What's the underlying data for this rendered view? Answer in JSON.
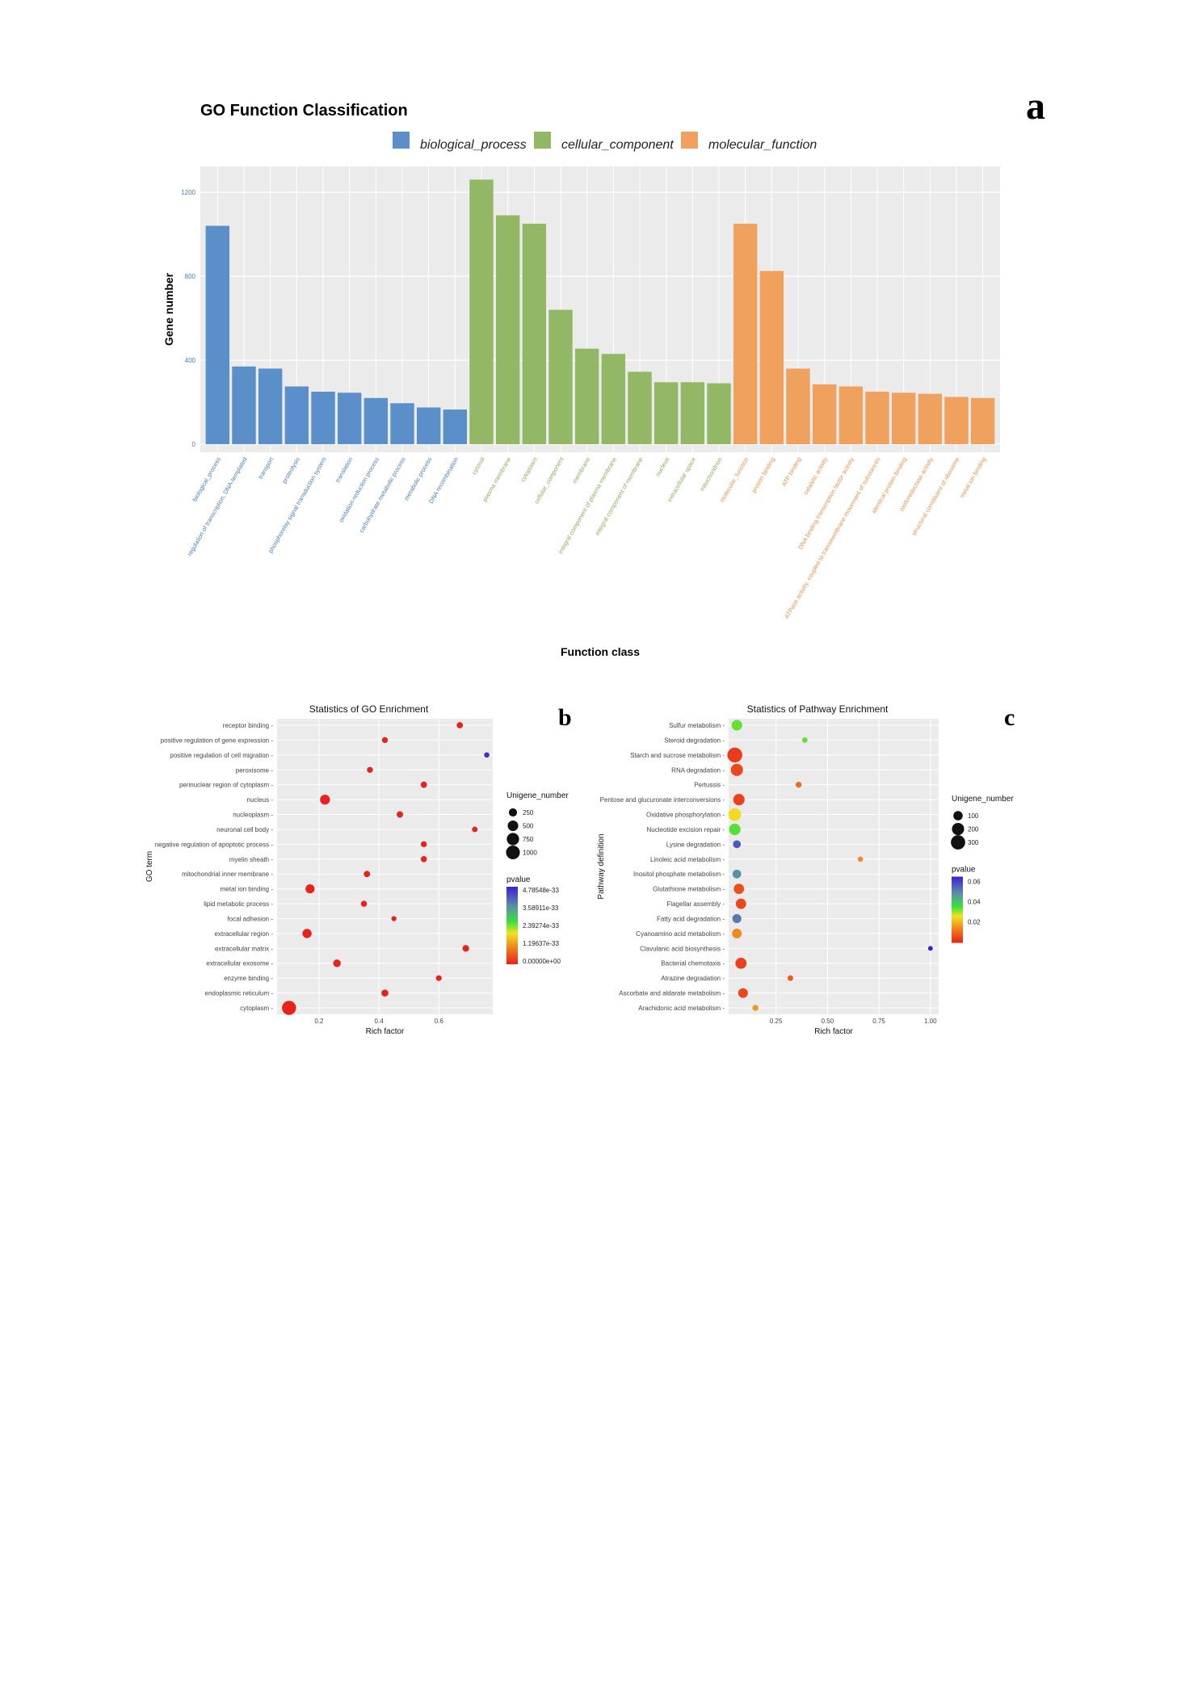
{
  "panel_labels": {
    "a": "a",
    "b": "b",
    "c": "c"
  },
  "chart_data": [
    {
      "id": "a",
      "type": "bar",
      "title": "GO Function Classification",
      "xlabel": "Function class",
      "ylabel": "Gene number",
      "ylim": [
        0,
        1300
      ],
      "yticks": [
        0,
        400,
        800,
        1200
      ],
      "grid": true,
      "legend_position": "top",
      "legend": [
        {
          "name": "biological_process",
          "color": "#5b8fc9"
        },
        {
          "name": "cellular_component",
          "color": "#92b866"
        },
        {
          "name": "molecular_function",
          "color": "#f0a15e"
        }
      ],
      "categories": [
        "biological_process",
        "regulation of transcription, DNA-templated",
        "transport",
        "proteolysis",
        "phosphorelay signal transduction system",
        "translation",
        "oxidation-reduction process",
        "carbohydrate metabolic process",
        "metabolic process",
        "DNA recombination",
        "cytosol",
        "plasma membrane",
        "cytoplasm",
        "cellular_component",
        "membrane",
        "integral component of plasma membrane",
        "integral component of membrane",
        "nucleus",
        "extracellular space",
        "mitochondrion",
        "molecular_function",
        "protein binding",
        "ATP binding",
        "catalytic activity",
        "DNA binding transcription factor activity",
        "ATPase activity, coupled to transmembrane movement of substances",
        "identical protein binding",
        "oxidoreductase activity",
        "structural constituent of ribosome",
        "metal ion binding"
      ],
      "groups": [
        "biological_process",
        "biological_process",
        "biological_process",
        "biological_process",
        "biological_process",
        "biological_process",
        "biological_process",
        "biological_process",
        "biological_process",
        "biological_process",
        "cellular_component",
        "cellular_component",
        "cellular_component",
        "cellular_component",
        "cellular_component",
        "cellular_component",
        "cellular_component",
        "cellular_component",
        "cellular_component",
        "cellular_component",
        "molecular_function",
        "molecular_function",
        "molecular_function",
        "molecular_function",
        "molecular_function",
        "molecular_function",
        "molecular_function",
        "molecular_function",
        "molecular_function",
        "molecular_function"
      ],
      "values": [
        1040,
        370,
        360,
        275,
        250,
        245,
        220,
        195,
        175,
        165,
        1260,
        1090,
        1050,
        640,
        455,
        430,
        345,
        295,
        295,
        290,
        1050,
        825,
        360,
        285,
        275,
        250,
        245,
        240,
        225,
        220
      ]
    },
    {
      "id": "b",
      "type": "scatter",
      "title": "Statistics of GO Enrichment",
      "xlabel": "Rich factor",
      "ylabel": "GO term",
      "xlim": [
        0.06,
        0.78
      ],
      "xticks": [
        0.2,
        0.4,
        0.6
      ],
      "grid": true,
      "size_legend": {
        "title": "Unigene_number",
        "values": [
          250,
          500,
          750,
          1000
        ]
      },
      "color_legend": {
        "title": "pvalue",
        "labels": [
          "4.78548e-33",
          "3.58911e-33",
          "2.39274e-33",
          "1.19637e-33",
          "0.00000e+00"
        ],
        "max": 4.78548e-33
      },
      "terms": [
        "receptor binding",
        "positive regulation of gene expression",
        "positive regulation of cell migration",
        "peroxisome",
        "perinuclear region of cytoplasm",
        "nucleus",
        "nucleoplasm",
        "neuronal cell body",
        "negative regulation of apoptotic process",
        "myelin sheath",
        "mitochondrial inner membrane",
        "metal ion binding",
        "lipid metabolic process",
        "focal adhesion",
        "extracellular region",
        "extracellular matrix",
        "extracellular exosome",
        "enzyme binding",
        "endoplasmic reticulum",
        "cytoplasm"
      ],
      "rich_factor": [
        0.67,
        0.42,
        0.76,
        0.37,
        0.55,
        0.22,
        0.47,
        0.72,
        0.55,
        0.55,
        0.36,
        0.17,
        0.35,
        0.45,
        0.16,
        0.69,
        0.26,
        0.6,
        0.42,
        0.1
      ],
      "unigene_number": [
        110,
        90,
        60,
        90,
        110,
        430,
        120,
        70,
        90,
        100,
        110,
        330,
        100,
        50,
        350,
        130,
        200,
        80,
        160,
        1050
      ],
      "pvalue": [
        0,
        0,
        4.6e-33,
        0,
        0,
        0,
        0,
        0,
        0,
        0,
        0,
        0,
        0,
        0,
        0,
        0,
        0,
        0,
        0,
        0
      ]
    },
    {
      "id": "c",
      "type": "scatter",
      "title": "Statistics of Pathway Enrichment",
      "xlabel": "Rich factor",
      "ylabel": "Pathway definition",
      "xlim": [
        0.02,
        1.04
      ],
      "xticks": [
        0.25,
        0.5,
        0.75,
        1.0
      ],
      "xtick_labels": [
        "0.25",
        "0.50",
        "0.75",
        "1.00"
      ],
      "grid": true,
      "size_legend": {
        "title": "Unigene_number",
        "values": [
          100,
          200,
          300
        ]
      },
      "color_legend": {
        "title": "pvalue",
        "labels": [
          "0.06",
          "0.04",
          "0.02"
        ],
        "max": 0.07
      },
      "terms": [
        "Sulfur metabolism",
        "Steroid degradation",
        "Starch and sucrose metabolism",
        "RNA degradation",
        "Pertussis",
        "Pentose and glucuronate interconversions",
        "Oxidative phosphorylation",
        "Nucleotide excision repair",
        "Lysine degradation",
        "Linoleic acid metabolism",
        "Inositol phosphate metabolism",
        "Glutathione metabolism",
        "Flagellar assembly",
        "Fatty acid degradation",
        "Cyanoamino acid metabolism",
        "Clavulanic acid biosynthesis",
        "Bacterial chemotaxis",
        "Atrazine degradation",
        "Ascorbate and aldarate metabolism",
        "Arachidonic acid metabolism"
      ],
      "rich_factor": [
        0.06,
        0.39,
        0.05,
        0.06,
        0.36,
        0.07,
        0.05,
        0.05,
        0.06,
        0.66,
        0.06,
        0.07,
        0.08,
        0.06,
        0.06,
        1.0,
        0.08,
        0.32,
        0.09,
        0.15
      ],
      "unigene_number": [
        140,
        20,
        330,
        200,
        25,
        170,
        220,
        170,
        60,
        15,
        80,
        130,
        130,
        90,
        110,
        10,
        160,
        20,
        110,
        25
      ],
      "pvalue": [
        0.036,
        0.036,
        0.004,
        0.006,
        0.012,
        0.005,
        0.027,
        0.037,
        0.061,
        0.016,
        0.052,
        0.007,
        0.006,
        0.056,
        0.016,
        0.07,
        0.005,
        0.009,
        0.006,
        0.018
      ]
    }
  ]
}
